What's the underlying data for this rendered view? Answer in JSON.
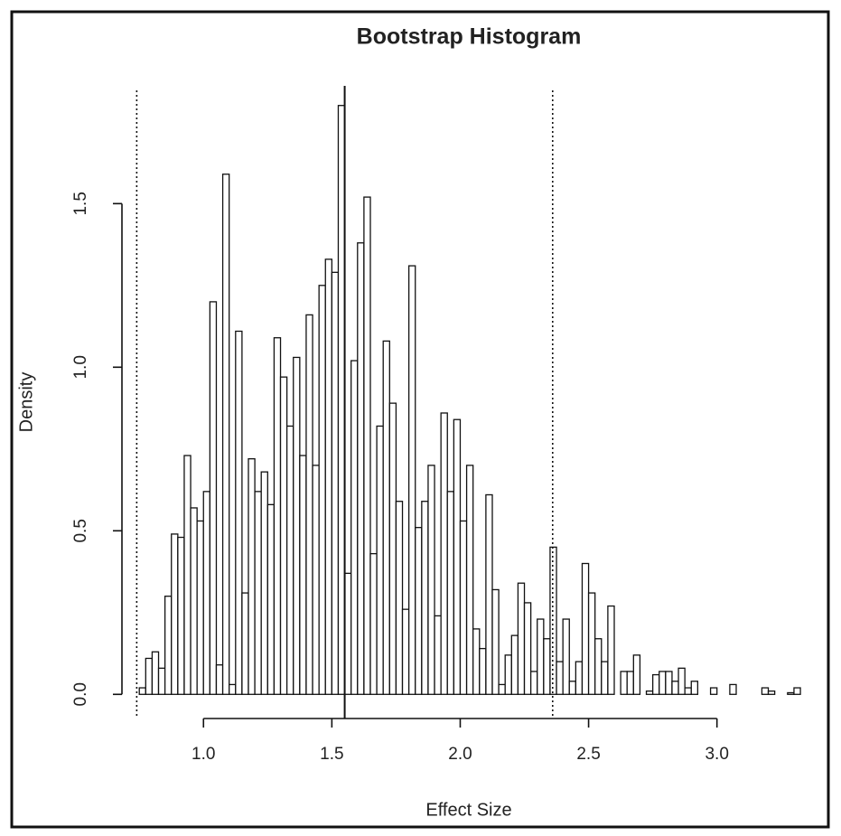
{
  "chart_data": {
    "type": "histogram",
    "title": "Bootstrap Histogram",
    "x_label": "Effect Size",
    "y_label": "Density",
    "bins": [
      0.75,
      0.775,
      0.8,
      0.825,
      0.85,
      0.875,
      0.9,
      0.925,
      0.95,
      0.975,
      1.0,
      1.025,
      1.05,
      1.075,
      1.1,
      1.125,
      1.15,
      1.175,
      1.2,
      1.225,
      1.25,
      1.275,
      1.3,
      1.325,
      1.35,
      1.375,
      1.4,
      1.425,
      1.45,
      1.475,
      1.5,
      1.525,
      1.55,
      1.575,
      1.6,
      1.625,
      1.65,
      1.675,
      1.7,
      1.725,
      1.75,
      1.775,
      1.8,
      1.825,
      1.85,
      1.875,
      1.9,
      1.925,
      1.95,
      1.975,
      2.0,
      2.025,
      2.05,
      2.075,
      2.1,
      2.125,
      2.15,
      2.175,
      2.2,
      2.225,
      2.25,
      2.275,
      2.3,
      2.325,
      2.35,
      2.375,
      2.4,
      2.425,
      2.45,
      2.475,
      2.5,
      2.525,
      2.55,
      2.575,
      2.6,
      2.625,
      2.65,
      2.675,
      2.7,
      2.725,
      2.75,
      2.775,
      2.8,
      2.825,
      2.85,
      2.875,
      2.9,
      2.925,
      2.95,
      2.975,
      3.0,
      3.025,
      3.05,
      3.075,
      3.1,
      3.125,
      3.15,
      3.175,
      3.2,
      3.225,
      3.25,
      3.275,
      3.3,
      3.325
    ],
    "values": [
      0.02,
      0.11,
      0.13,
      0.08,
      0.3,
      0.49,
      0.48,
      0.73,
      0.57,
      0.53,
      0.62,
      1.2,
      0.09,
      1.59,
      0.03,
      1.11,
      0.31,
      0.72,
      0.62,
      0.68,
      0.58,
      1.09,
      0.97,
      0.82,
      1.03,
      0.73,
      1.16,
      0.7,
      1.25,
      1.33,
      1.29,
      1.8,
      0.37,
      1.02,
      1.38,
      1.52,
      0.43,
      0.82,
      1.08,
      0.89,
      0.59,
      0.26,
      1.31,
      0.51,
      0.59,
      0.7,
      0.24,
      0.86,
      0.62,
      0.84,
      0.53,
      0.7,
      0.2,
      0.14,
      0.61,
      0.32,
      0.03,
      0.12,
      0.18,
      0.34,
      0.28,
      0.07,
      0.23,
      0.17,
      0.45,
      0.1,
      0.23,
      0.04,
      0.1,
      0.4,
      0.31,
      0.17,
      0.1,
      0.27,
      0,
      0.07,
      0.07,
      0.12,
      0,
      0.01,
      0.06,
      0.07,
      0.07,
      0.04,
      0.08,
      0.02,
      0.04,
      0,
      0,
      0.02,
      0,
      0,
      0.03,
      0,
      0,
      0,
      0,
      0.02,
      0.01,
      0,
      0,
      0.005,
      0.02
    ],
    "color": "#ffffff",
    "edge_color": "#111111",
    "xlim": [
      0.7,
      3.36
    ],
    "ylim": [
      -0.06,
      1.86
    ],
    "xticks": [
      {
        "value": 1,
        "label": "1.0"
      },
      {
        "value": 1.5,
        "label": "1.5"
      },
      {
        "value": 2,
        "label": "2.0"
      },
      {
        "value": 2.5,
        "label": "2.5"
      },
      {
        "value": 3,
        "label": "3.0"
      }
    ],
    "yticks": [
      {
        "value": 0,
        "label": "0.0"
      },
      {
        "value": 0.5,
        "label": "0.5"
      },
      {
        "value": 1,
        "label": "1.0"
      },
      {
        "value": 1.5,
        "label": "1.5"
      }
    ],
    "reference_lines": [
      {
        "x": 0.74,
        "style": "dotted"
      },
      {
        "x": 1.55,
        "style": "solid"
      },
      {
        "x": 2.36,
        "style": "dotted"
      }
    ],
    "grid": false
  }
}
